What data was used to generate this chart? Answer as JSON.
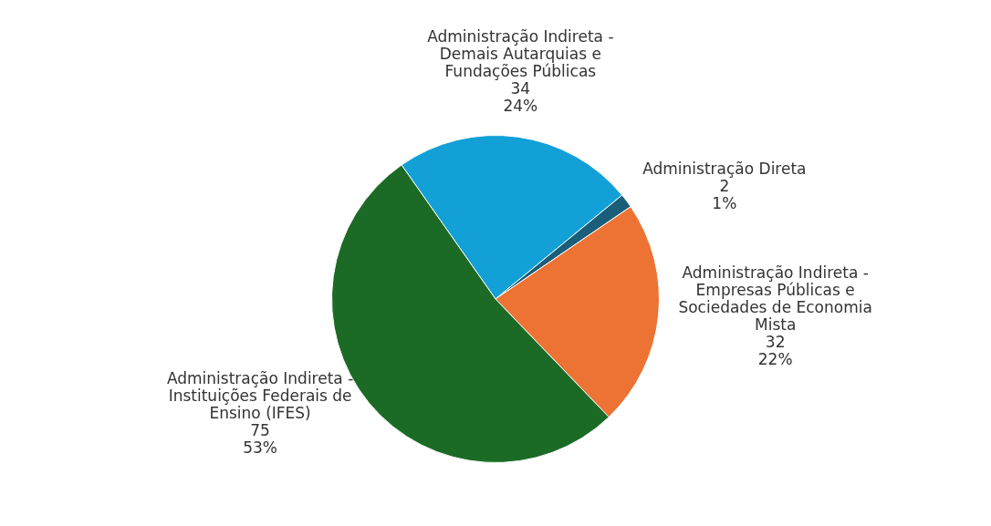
{
  "chart_data": {
    "type": "pie",
    "categories": [
      "Administração Indireta - Demais Autarquias e Fundações Públicas",
      "Administração Direta",
      "Administração Indireta - Empresas Públicas e Sociedades de Economia Mista",
      "Administração Indireta - Instituições Federais de Ensino (IFES)"
    ],
    "values": [
      34,
      2,
      32,
      75
    ],
    "colors": [
      "#12a0d7",
      "#1a5e7a",
      "#ec7334",
      "#1b6b26"
    ],
    "value_labels": [
      "34\n24%",
      "2\n1%",
      "32\n22%",
      "75\n53%"
    ],
    "legend": false
  }
}
